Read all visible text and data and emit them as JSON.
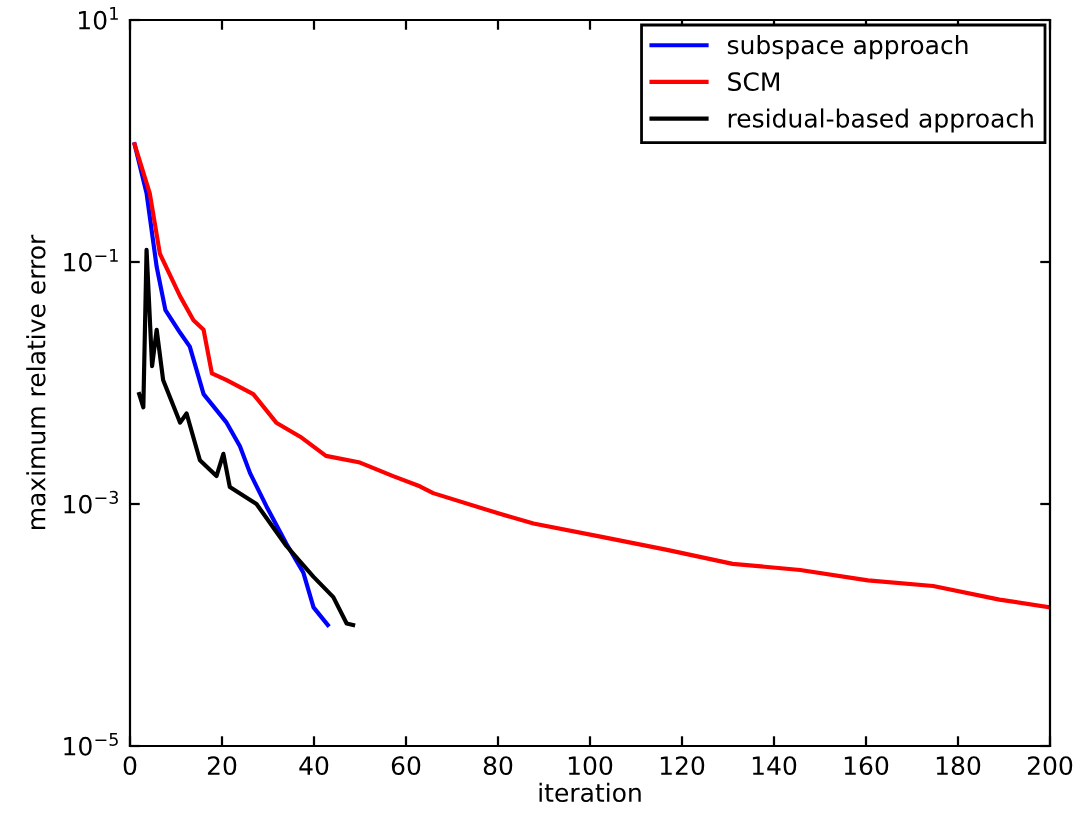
{
  "chart_data": {
    "type": "line",
    "xlabel": "iteration",
    "ylabel": "maximum relative error",
    "log": "y",
    "legend": "top right",
    "grid": false,
    "xlim": [
      0,
      200
    ],
    "xticks": [
      0,
      20,
      40,
      60,
      80,
      100,
      120,
      140,
      160,
      180,
      200
    ],
    "ylim": [
      1e-05,
      10
    ],
    "yticks": [
      {
        "value": 10,
        "label": "10$^{1}$"
      },
      {
        "value": 0.1,
        "label": "10$^{−1}$"
      },
      {
        "value": 0.001,
        "label": "10$^{−3}$"
      },
      {
        "value": 1e-05,
        "label": "10$^{−5}$"
      }
    ],
    "series": [
      {
        "name": "subspace approach",
        "color": "#0000ff",
        "x": [
          1,
          3.6,
          5.8,
          7.7,
          10.9,
          13,
          16,
          21,
          23.9,
          26.1,
          29.7,
          34,
          37.7,
          39.9,
          43
        ],
        "values": [
          0.94,
          0.37,
          0.091,
          0.04,
          0.026,
          0.02,
          0.0081,
          0.0047,
          0.003,
          0.0018,
          0.00095,
          0.00047,
          0.00027,
          0.00014,
          0.0001
        ]
      },
      {
        "name": "SCM",
        "color": "#ff0000",
        "x": [
          1,
          4.3,
          6.5,
          10.9,
          13.8,
          16,
          17.8,
          20.9,
          26.8,
          31.8,
          37,
          42.6,
          50,
          57.2,
          63,
          65.9,
          80.4,
          87.7,
          102,
          116.5,
          131,
          145.7,
          160.4,
          174.6,
          189,
          200
        ],
        "values": [
          0.94,
          0.37,
          0.117,
          0.052,
          0.033,
          0.0275,
          0.012,
          0.0106,
          0.0081,
          0.0047,
          0.0036,
          0.0025,
          0.0022,
          0.0017,
          0.0014,
          0.00123,
          0.00083,
          0.00069,
          0.00054,
          0.00042,
          0.00032,
          0.000285,
          0.000234,
          0.00021,
          0.000162,
          0.00014
        ]
      },
      {
        "name": "residual-based approach",
        "color": "#000000",
        "x": [
          2,
          2.9,
          3.6,
          4.8,
          5.8,
          7.2,
          10.9,
          12.3,
          15.2,
          18.8,
          20.3,
          21.7,
          27.5,
          34,
          39.9,
          44.2,
          47.1,
          48.5
        ],
        "values": [
          0.0081,
          0.0063,
          0.126,
          0.0138,
          0.0275,
          0.0106,
          0.0047,
          0.0056,
          0.0023,
          0.0017,
          0.0026,
          0.00138,
          0.001,
          0.00045,
          0.00025,
          0.00017,
          0.000103,
          0.0001
        ]
      }
    ]
  }
}
